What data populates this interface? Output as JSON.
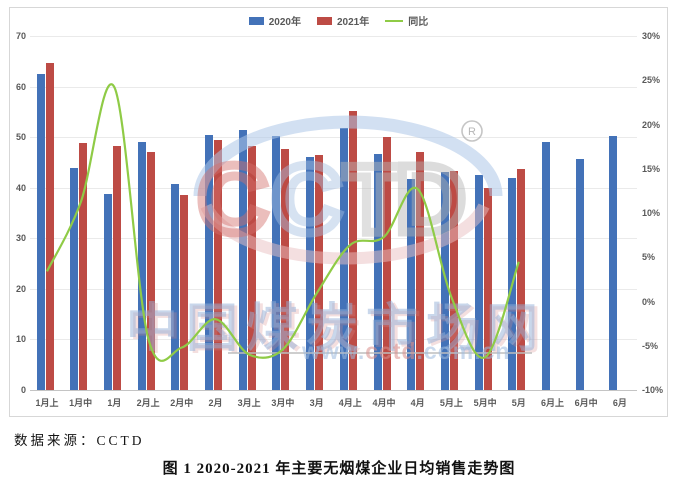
{
  "chart_data": {
    "type": "bar",
    "title": "",
    "categories": [
      "1月上",
      "1月中",
      "1月",
      "2月上",
      "2月中",
      "2月",
      "3月上",
      "3月中",
      "3月",
      "4月上",
      "4月中",
      "4月",
      "5月上",
      "5月中",
      "5月",
      "6月上",
      "6月中",
      "6月"
    ],
    "series": [
      {
        "name": "2020年",
        "kind": "bar",
        "color": "#4372B8",
        "values": [
          62.5,
          43.9,
          38.8,
          49.0,
          40.7,
          50.4,
          51.4,
          50.3,
          46.1,
          51.9,
          46.7,
          41.7,
          43.2,
          42.6,
          41.9,
          49.1,
          45.7,
          50.3
        ]
      },
      {
        "name": "2021年",
        "kind": "bar",
        "color": "#BD4B45",
        "values": [
          64.6,
          48.8,
          48.2,
          47.0,
          38.6,
          49.4,
          48.3,
          47.6,
          46.5,
          55.2,
          50.1,
          47.0,
          43.4,
          39.9,
          43.8,
          null,
          null,
          null
        ]
      },
      {
        "name": "同比",
        "kind": "line",
        "axis": "right",
        "color": "#8FCB46",
        "values": [
          3.4,
          11.2,
          24.2,
          -4.1,
          -5.2,
          -2.0,
          -6.0,
          -5.4,
          0.9,
          6.4,
          7.3,
          12.7,
          0.5,
          -6.3,
          4.5,
          null,
          null,
          null
        ]
      }
    ],
    "left_axis": {
      "min": 0,
      "max": 70,
      "ticks": [
        0,
        10,
        20,
        30,
        40,
        50,
        60,
        70
      ]
    },
    "right_axis": {
      "min": -10,
      "max": 30,
      "ticks": [
        -10,
        -5,
        0,
        5,
        10,
        15,
        20,
        25,
        30
      ],
      "suffix": "%"
    },
    "legend_position": "top",
    "grid": true
  },
  "watermark": {
    "logo_letters": [
      "C",
      "C",
      "T",
      "D"
    ],
    "registered_mark": "®",
    "site_name": "中国煤炭市场网",
    "url_www": "www.",
    "url_mid": "cctd",
    "url_tail": ".com.cn"
  },
  "footer": {
    "source": "数据来源：CCTD",
    "caption": "图 1 2020-2021 年主要无烟煤企业日均销售走势图"
  }
}
